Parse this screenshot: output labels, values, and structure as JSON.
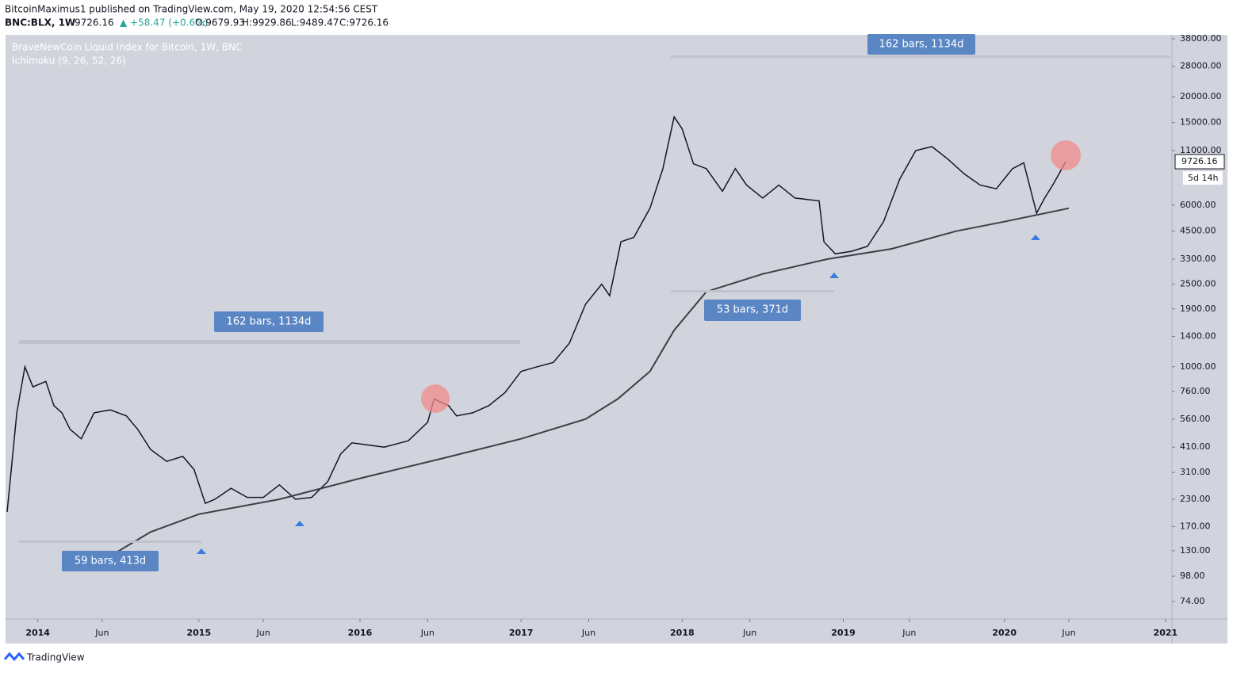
{
  "header": {
    "publisher": "BitcoinMaximus1 published on TradingView.com, May 19, 2020 12:54:56 CEST",
    "symbol": "BNC:BLX, 1W",
    "last": "9726.16",
    "change": "▲ +58.47 (+0.6%)",
    "ohlc": [
      "O:9679.93",
      "H:9929.86",
      "L:9489.47",
      "C:9726.16"
    ]
  },
  "footer": {
    "logo": "TradingView"
  },
  "chart_data": {
    "type": "line",
    "legend": [
      "BraveNewCoin Liquid Index for Bitcoin, 1W, BNC",
      "Ichimoku (9, 26, 52, 26)"
    ],
    "log_scale": true,
    "xlim": [
      2013.8,
      2021.04
    ],
    "xticks": [
      {
        "value": 2014,
        "label": "2014"
      },
      {
        "value": 2014.4,
        "label": "Jun"
      },
      {
        "value": 2015,
        "label": "2015"
      },
      {
        "value": 2015.4,
        "label": "Jun"
      },
      {
        "value": 2016,
        "label": "2016"
      },
      {
        "value": 2016.42,
        "label": "Jun"
      },
      {
        "value": 2017,
        "label": "2017"
      },
      {
        "value": 2017.42,
        "label": "Jun"
      },
      {
        "value": 2018,
        "label": "2018"
      },
      {
        "value": 2018.42,
        "label": "Jun"
      },
      {
        "value": 2019,
        "label": "2019"
      },
      {
        "value": 2019.41,
        "label": "Jun"
      },
      {
        "value": 2020,
        "label": "2020"
      },
      {
        "value": 2020.4,
        "label": "Jun"
      },
      {
        "value": 2021,
        "label": "2021"
      }
    ],
    "ylim": [
      61,
      39700
    ],
    "yticks": [
      {
        "value": 38000,
        "label": "38000.00"
      },
      {
        "value": 28000,
        "label": "28000.00"
      },
      {
        "value": 20000,
        "label": "20000.00"
      },
      {
        "value": 15000,
        "label": "15000.00"
      },
      {
        "value": 11000,
        "label": "11000.00"
      },
      {
        "value": 6000,
        "label": "6000.00"
      },
      {
        "value": 4500,
        "label": "4500.00"
      },
      {
        "value": 3300,
        "label": "3300.00"
      },
      {
        "value": 2500,
        "label": "2500.00"
      },
      {
        "value": 1900,
        "label": "1900.00"
      },
      {
        "value": 1400,
        "label": "1400.00"
      },
      {
        "value": 1000,
        "label": "1000.00"
      },
      {
        "value": 760,
        "label": "760.00"
      },
      {
        "value": 560,
        "label": "560.00"
      },
      {
        "value": 410,
        "label": "410.00"
      },
      {
        "value": 310,
        "label": "310.00"
      },
      {
        "value": 230,
        "label": "230.00"
      },
      {
        "value": 170,
        "label": "170.00"
      },
      {
        "value": 130,
        "label": "130.00"
      },
      {
        "value": 98,
        "label": "98.00"
      },
      {
        "value": 74,
        "label": "74.00"
      }
    ],
    "series": [
      {
        "name": "BraveNewCoin Liquid Index for Bitcoin, 1W, BNC",
        "color": "#131722",
        "x": [
          2013.81,
          2013.87,
          2013.92,
          2013.97,
          2014.05,
          2014.1,
          2014.15,
          2014.2,
          2014.27,
          2014.35,
          2014.45,
          2014.55,
          2014.62,
          2014.7,
          2014.8,
          2014.9,
          2014.97,
          2015.04,
          2015.1,
          2015.2,
          2015.3,
          2015.4,
          2015.5,
          2015.6,
          2015.7,
          2015.8,
          2015.88,
          2015.95,
          2016.05,
          2016.15,
          2016.3,
          2016.42,
          2016.46,
          2016.55,
          2016.6,
          2016.7,
          2016.8,
          2016.9,
          2017.0,
          2017.1,
          2017.2,
          2017.3,
          2017.4,
          2017.5,
          2017.55,
          2017.62,
          2017.7,
          2017.8,
          2017.88,
          2017.95,
          2018.0,
          2018.07,
          2018.15,
          2018.25,
          2018.33,
          2018.4,
          2018.5,
          2018.6,
          2018.7,
          2018.85,
          2018.88,
          2018.95,
          2019.05,
          2019.15,
          2019.25,
          2019.35,
          2019.45,
          2019.55,
          2019.65,
          2019.75,
          2019.85,
          2019.95,
          2020.05,
          2020.12,
          2020.2,
          2020.25,
          2020.3,
          2020.35,
          2020.38
        ],
        "values": [
          200,
          600,
          1000,
          800,
          850,
          650,
          600,
          500,
          450,
          600,
          620,
          580,
          500,
          400,
          350,
          370,
          320,
          220,
          230,
          260,
          235,
          235,
          270,
          230,
          235,
          280,
          380,
          430,
          420,
          410,
          440,
          540,
          700,
          650,
          580,
          600,
          650,
          750,
          950,
          1000,
          1050,
          1300,
          2000,
          2500,
          2200,
          4000,
          4200,
          5800,
          9000,
          16000,
          14000,
          9500,
          9000,
          7000,
          9000,
          7500,
          6500,
          7500,
          6500,
          6300,
          4000,
          3500,
          3600,
          3800,
          5000,
          8000,
          11000,
          11500,
          10000,
          8500,
          7500,
          7200,
          9000,
          9600,
          5500,
          6500,
          7500,
          8800,
          9726.16
        ]
      },
      {
        "color": "#3c3f47",
        "x": [
          2014.43,
          2014.7,
          2015.0,
          2015.5,
          2016.0,
          2016.5,
          2017.0,
          2017.4,
          2017.6,
          2017.8,
          2017.95,
          2018.15,
          2018.5,
          2018.9,
          2019.3,
          2019.7,
          2020.0,
          2020.4
        ],
        "values": [
          120,
          160,
          195,
          230,
          290,
          360,
          450,
          560,
          700,
          950,
          1500,
          2300,
          2800,
          3300,
          3700,
          4500,
          5000,
          5800
        ]
      }
    ],
    "annotations": [
      "162 bars, 1134d",
      "59 bars, 413d",
      "162 bars, 1134d",
      "53 bars, 371d"
    ],
    "last_price": {
      "value": 9726.16,
      "label": "9726.16"
    },
    "countdown": "5d 14h"
  }
}
